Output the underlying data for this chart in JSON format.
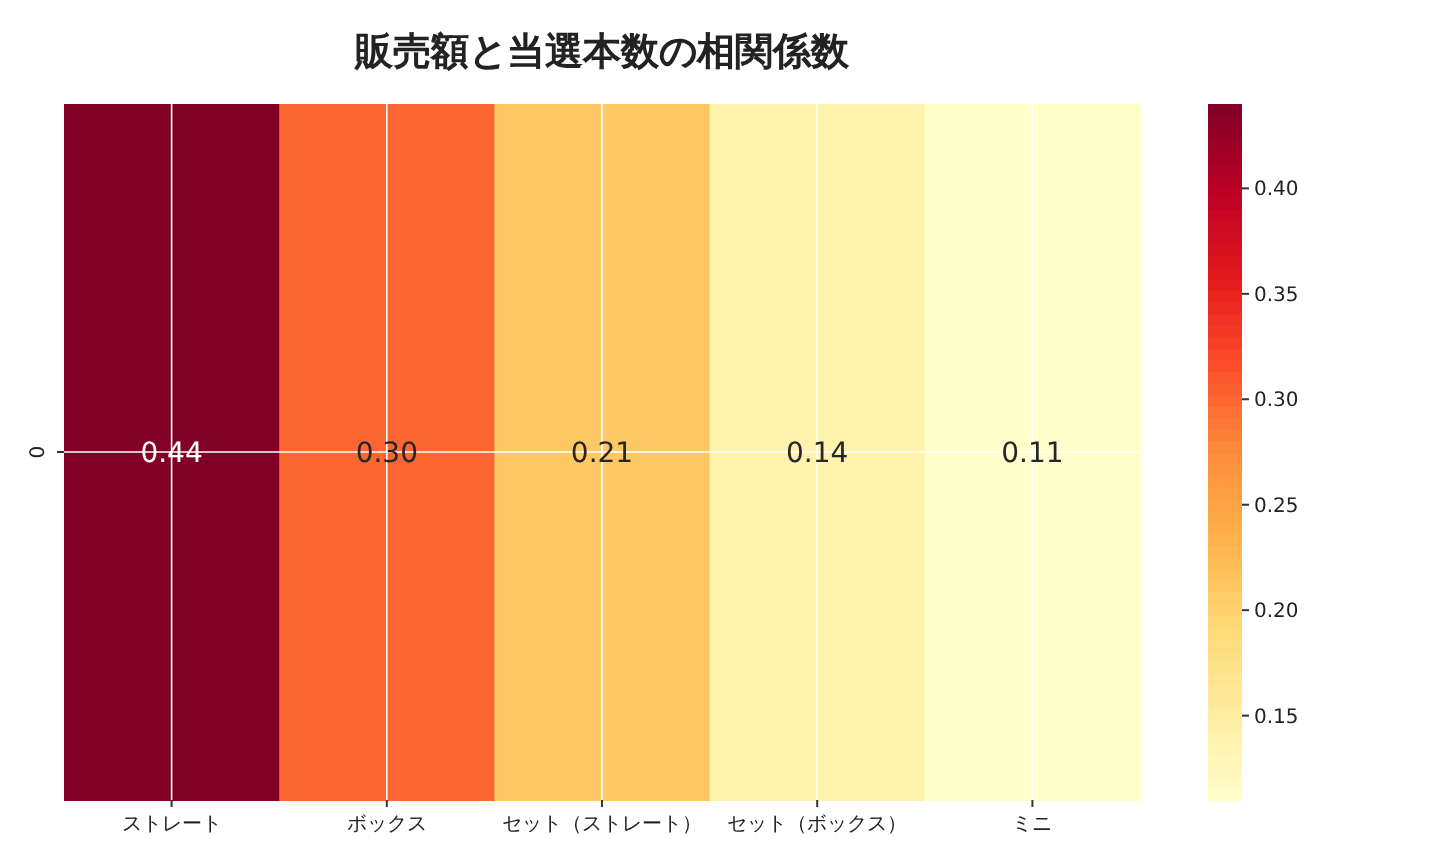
{
  "chart_data": {
    "type": "heatmap",
    "title": "販売額と当選本数の相関係数",
    "categories": [
      "ストレート",
      "ボックス",
      "セット（ストレート）",
      "セット（ボックス）",
      "ミニ"
    ],
    "y_categories": [
      "0"
    ],
    "cells": [
      [
        0.44,
        0.3,
        0.21,
        0.14,
        0.11
      ]
    ],
    "cell_labels": [
      [
        "0.44",
        "0.30",
        "0.21",
        "0.14",
        "0.11"
      ]
    ],
    "data_labels": true,
    "clim": [
      0.11,
      0.44
    ],
    "cticks": [
      {
        "value": 0.15,
        "label": "0.15"
      },
      {
        "value": 0.2,
        "label": "0.20"
      },
      {
        "value": 0.25,
        "label": "0.25"
      },
      {
        "value": 0.3,
        "label": "0.30"
      },
      {
        "value": 0.35,
        "label": "0.35"
      },
      {
        "value": 0.4,
        "label": "0.40"
      }
    ],
    "grid": true
  }
}
